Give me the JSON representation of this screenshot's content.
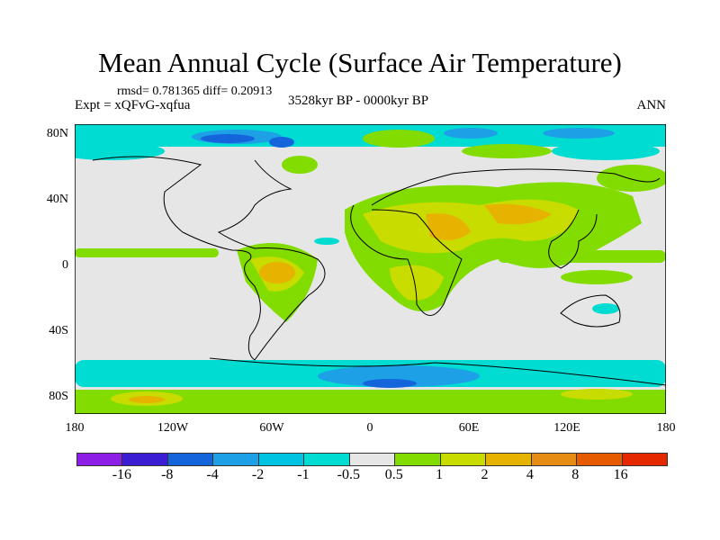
{
  "title": "Mean Annual Cycle (Surface Air Temperature)",
  "stats": "rmsd= 0.781365 diff= 0.20913",
  "experiment": "Expt = xQFvG-xqfua",
  "period": "3528kyr BP - 0000kyr BP",
  "season": "ANN",
  "map": {
    "y_ticks": [
      "80N",
      "40N",
      "0",
      "40S",
      "80S"
    ],
    "x_ticks": [
      "180",
      "120W",
      "60W",
      "0",
      "60E",
      "120E",
      "180"
    ]
  },
  "colorbar": {
    "colors": [
      "#8c1ee6",
      "#3c1ed2",
      "#1464dc",
      "#1ea0e6",
      "#00c3e1",
      "#00dcd2",
      "#e6e6e6",
      "#82dc00",
      "#c8dc00",
      "#e6b400",
      "#e68c14",
      "#e65a00",
      "#e62800"
    ],
    "labels": [
      "-16",
      "-8",
      "-4",
      "-2",
      "-1",
      "-0.5",
      "0.5",
      "1",
      "2",
      "4",
      "8",
      "16"
    ]
  }
}
